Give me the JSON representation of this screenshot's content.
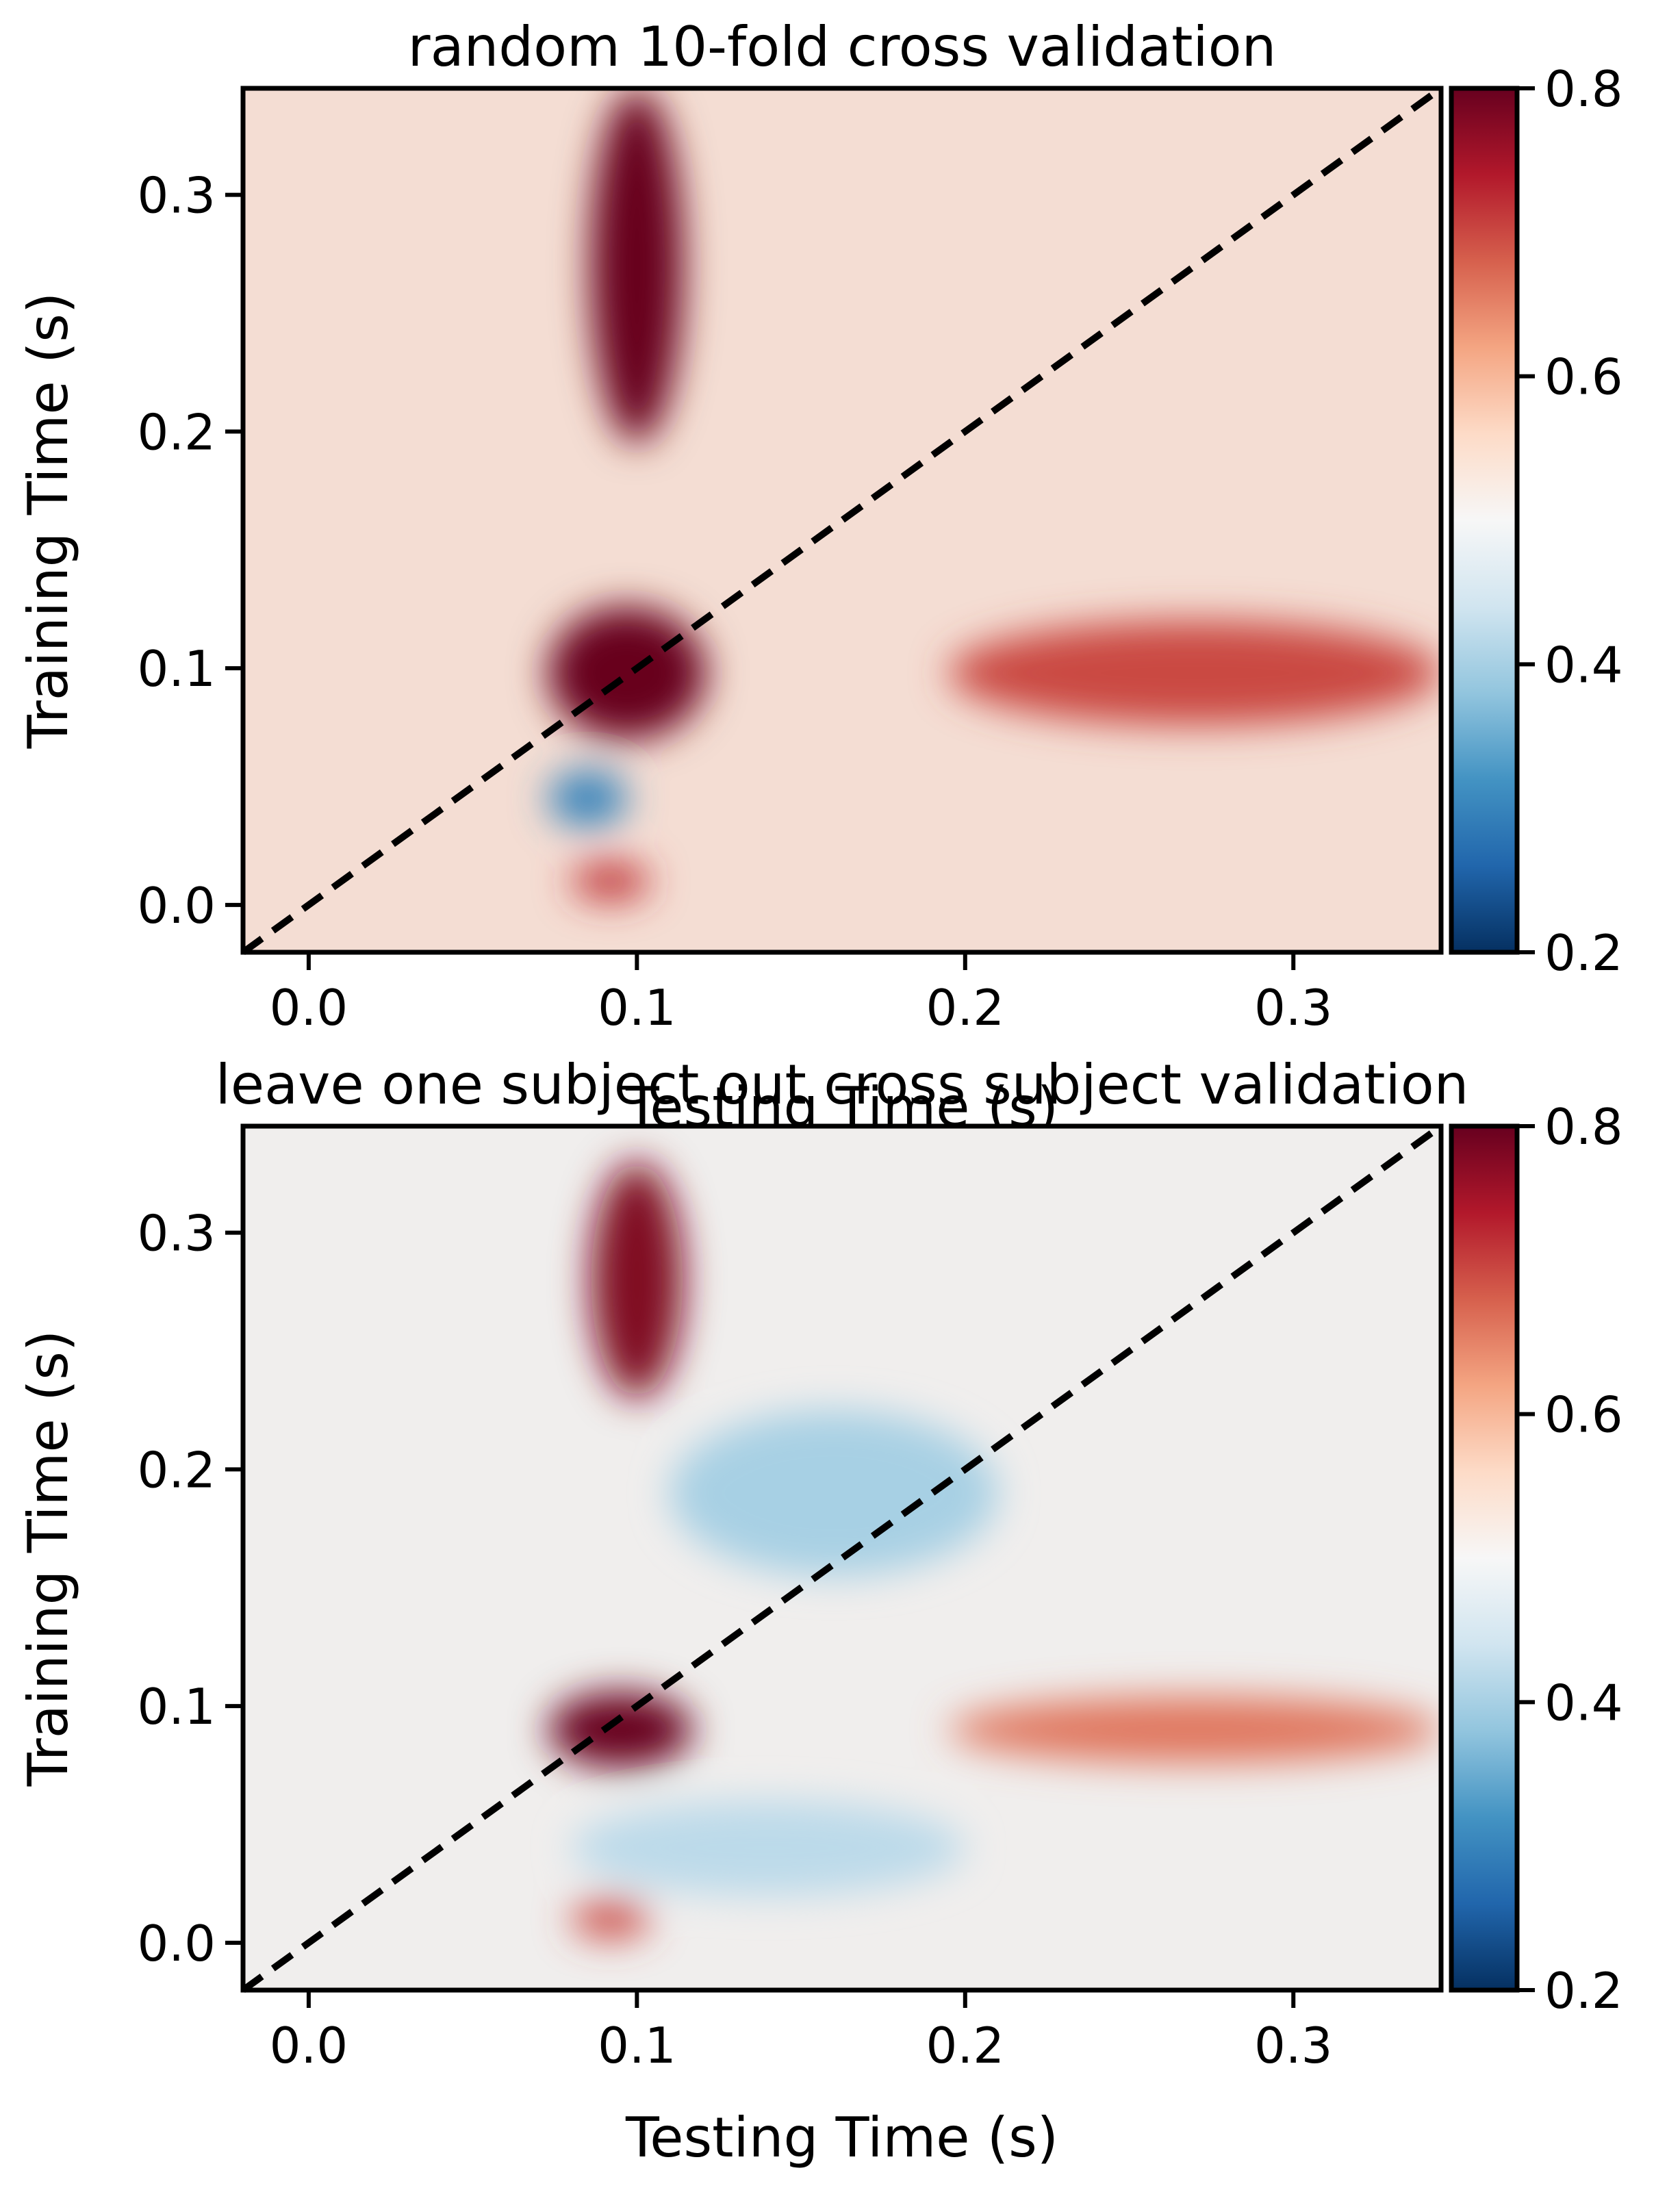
{
  "chart_data": [
    {
      "type": "heatmap",
      "title": "random 10-fold cross validation",
      "xlabel": "Testing Time (s)",
      "ylabel": "Training Time (s)",
      "xlim": [
        -0.02,
        0.345
      ],
      "ylim": [
        -0.02,
        0.345
      ],
      "x_ticks": [
        0.0,
        0.1,
        0.2,
        0.3
      ],
      "x_tick_labels": [
        "0.0",
        "0.1",
        "0.2",
        "0.3"
      ],
      "y_ticks": [
        0.0,
        0.1,
        0.2,
        0.3
      ],
      "y_tick_labels": [
        "0.0",
        "0.1",
        "0.2",
        "0.3"
      ],
      "colormap": "RdBu_r",
      "colorbar": {
        "vmin": 0.2,
        "vmax": 0.8,
        "ticks": [
          0.2,
          0.4,
          0.6,
          0.8
        ],
        "tick_labels": [
          "0.2",
          "0.4",
          "0.6",
          "0.8"
        ]
      },
      "diagonal": {
        "style": "dashed",
        "color": "#000000"
      },
      "features": [
        {
          "cx": 0.097,
          "cy": 0.098,
          "rx": 0.024,
          "ry": 0.028,
          "value": 0.82
        },
        {
          "cx": 0.1,
          "cy": 0.27,
          "rx": 0.014,
          "ry": 0.075,
          "value": 0.8
        },
        {
          "cx": 0.27,
          "cy": 0.098,
          "rx": 0.075,
          "ry": 0.022,
          "value": 0.7
        },
        {
          "cx": 0.085,
          "cy": 0.045,
          "rx": 0.012,
          "ry": 0.012,
          "value": 0.3
        },
        {
          "cx": 0.092,
          "cy": 0.01,
          "rx": 0.012,
          "ry": 0.008,
          "value": 0.72
        }
      ]
    },
    {
      "type": "heatmap",
      "title": "leave one subject out cross subject validation",
      "xlabel": "Testing Time (s)",
      "ylabel": "Training Time (s)",
      "xlim": [
        -0.02,
        0.345
      ],
      "ylim": [
        -0.02,
        0.345
      ],
      "x_ticks": [
        0.0,
        0.1,
        0.2,
        0.3
      ],
      "x_tick_labels": [
        "0.0",
        "0.1",
        "0.2",
        "0.3"
      ],
      "y_ticks": [
        0.0,
        0.1,
        0.2,
        0.3
      ],
      "y_tick_labels": [
        "0.0",
        "0.1",
        "0.2",
        "0.3"
      ],
      "colormap": "RdBu_r",
      "colorbar": {
        "vmin": 0.2,
        "vmax": 0.8,
        "ticks": [
          0.2,
          0.4,
          0.6,
          0.8
        ],
        "tick_labels": [
          "0.2",
          "0.4",
          "0.6",
          "0.8"
        ]
      },
      "diagonal": {
        "style": "dashed",
        "color": "#000000"
      },
      "features": [
        {
          "cx": 0.095,
          "cy": 0.09,
          "rx": 0.022,
          "ry": 0.016,
          "value": 0.82
        },
        {
          "cx": 0.1,
          "cy": 0.28,
          "rx": 0.014,
          "ry": 0.05,
          "value": 0.78
        },
        {
          "cx": 0.27,
          "cy": 0.09,
          "rx": 0.075,
          "ry": 0.014,
          "value": 0.66
        },
        {
          "cx": 0.16,
          "cy": 0.19,
          "rx": 0.05,
          "ry": 0.035,
          "value": 0.4
        },
        {
          "cx": 0.14,
          "cy": 0.04,
          "rx": 0.06,
          "ry": 0.02,
          "value": 0.42
        },
        {
          "cx": 0.092,
          "cy": 0.01,
          "rx": 0.012,
          "ry": 0.008,
          "value": 0.7
        }
      ]
    }
  ]
}
